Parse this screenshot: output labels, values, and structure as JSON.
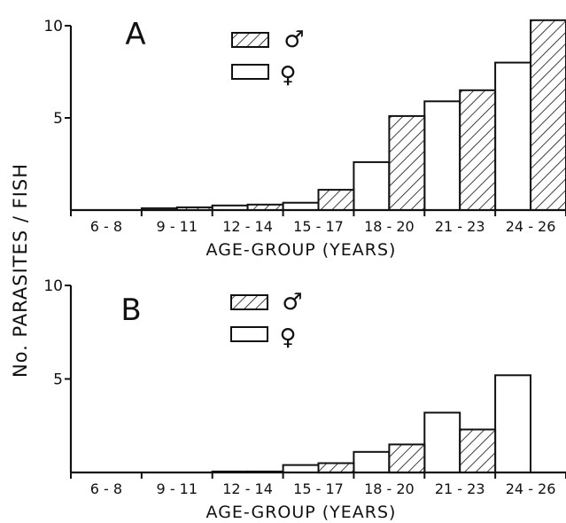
{
  "figure": {
    "ylabel": "No. PARASITES / FISH"
  },
  "legend": {
    "male_symbol": "♂",
    "female_symbol": "♀"
  },
  "colors": {
    "ink": "#111111",
    "background": "#ffffff",
    "female_fill": "#ffffff"
  },
  "chart_data": [
    {
      "type": "bar",
      "panel_label": "A",
      "categories": [
        "6 - 8",
        "9 - 11",
        "12 - 14",
        "15 - 17",
        "18 - 20",
        "21 - 23",
        "24 - 26"
      ],
      "series": [
        {
          "name": "♀",
          "values": [
            0,
            0.1,
            0.25,
            0.4,
            2.6,
            5.9,
            8.0
          ]
        },
        {
          "name": "♂",
          "values": [
            0,
            0.15,
            0.3,
            1.1,
            5.1,
            6.5,
            10.3
          ]
        }
      ],
      "yticks": [
        5,
        10
      ],
      "ylim": [
        0,
        10.5
      ],
      "xlabel": "AGE-GROUP (YEARS)",
      "ylabel": "No. PARASITES / FISH",
      "grid": false,
      "legend": "top-center"
    },
    {
      "type": "bar",
      "panel_label": "B",
      "categories": [
        "6 - 8",
        "9 - 11",
        "12 - 14",
        "15 - 17",
        "18 - 20",
        "21 - 23",
        "24 - 26"
      ],
      "series": [
        {
          "name": "♀",
          "values": [
            0,
            0,
            0.05,
            0.4,
            1.1,
            3.2,
            5.2
          ]
        },
        {
          "name": "♂",
          "values": [
            0,
            0,
            0.05,
            0.5,
            1.5,
            2.3,
            0
          ]
        }
      ],
      "yticks": [
        5,
        10
      ],
      "ylim": [
        0,
        10.5
      ],
      "xlabel": "AGE-GROUP (YEARS)",
      "ylabel": "No. PARASITES / FISH",
      "grid": false,
      "legend": "top-center"
    }
  ]
}
